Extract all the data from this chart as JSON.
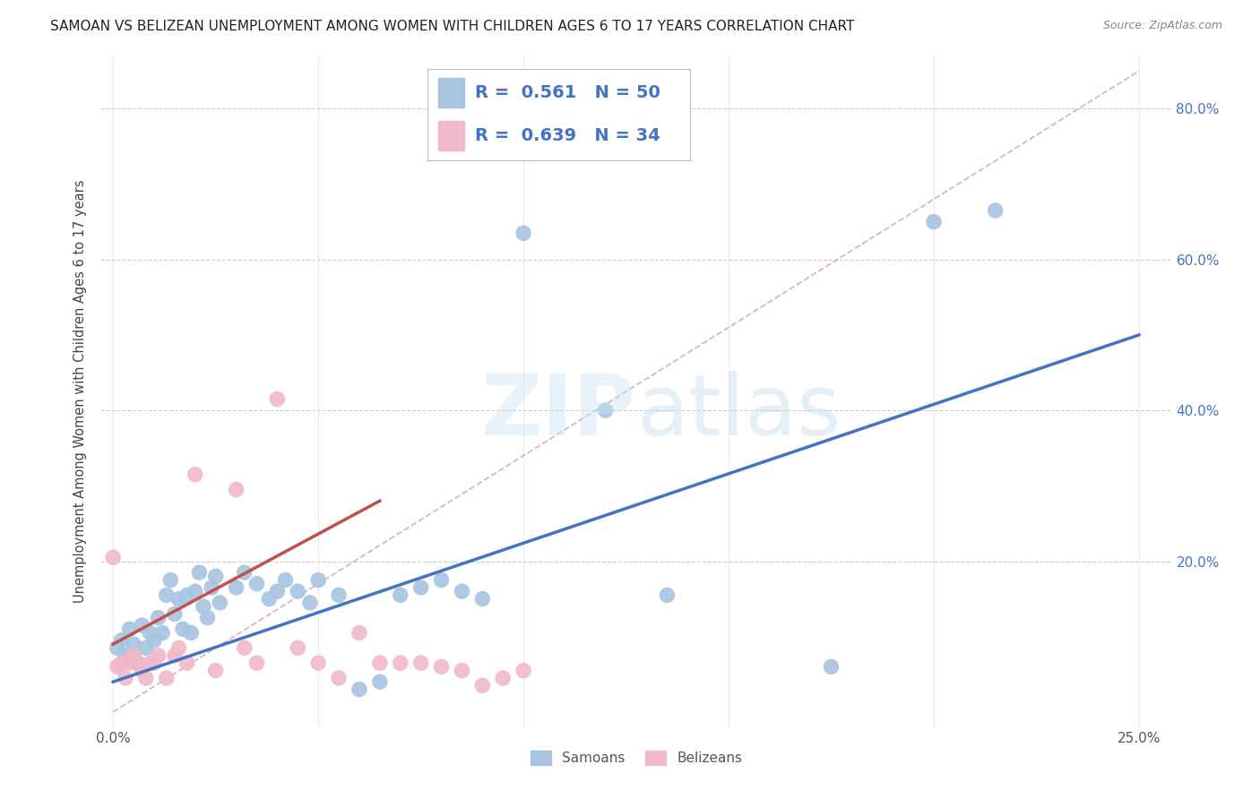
{
  "title": "SAMOAN VS BELIZEAN UNEMPLOYMENT AMONG WOMEN WITH CHILDREN AGES 6 TO 17 YEARS CORRELATION CHART",
  "source": "Source: ZipAtlas.com",
  "ylabel": "Unemployment Among Women with Children Ages 6 to 17 years",
  "xlim": [
    -0.003,
    0.258
  ],
  "ylim": [
    -0.02,
    0.87
  ],
  "xtick_positions": [
    0.0,
    0.05,
    0.1,
    0.15,
    0.2,
    0.25
  ],
  "xticklabels": [
    "0.0%",
    "",
    "",
    "",
    "",
    "25.0%"
  ],
  "ytick_positions": [
    0.0,
    0.2,
    0.4,
    0.6,
    0.8
  ],
  "yticklabels": [
    "",
    "20.0%",
    "40.0%",
    "60.0%",
    "80.0%"
  ],
  "background_color": "#ffffff",
  "samoans_color": "#a8c4e0",
  "belizeans_color": "#f0b8c8",
  "samoans_line_color": "#4472c4",
  "belizeans_line_color": "#c0504d",
  "diagonal_color": "#d4a8a8",
  "R_samoans": 0.561,
  "N_samoans": 50,
  "R_belizeans": 0.639,
  "N_belizeans": 34,
  "samoans_line": [
    [
      0.0,
      0.04
    ],
    [
      0.25,
      0.5
    ]
  ],
  "belizeans_line": [
    [
      0.0,
      0.09
    ],
    [
      0.065,
      0.28
    ]
  ],
  "diagonal_line": [
    [
      0.0,
      0.0
    ],
    [
      0.87,
      0.87
    ]
  ],
  "samoans_x": [
    0.001,
    0.002,
    0.003,
    0.004,
    0.005,
    0.005,
    0.006,
    0.007,
    0.008,
    0.009,
    0.01,
    0.011,
    0.012,
    0.013,
    0.014,
    0.015,
    0.016,
    0.017,
    0.018,
    0.019,
    0.02,
    0.021,
    0.022,
    0.023,
    0.024,
    0.025,
    0.026,
    0.03,
    0.032,
    0.035,
    0.038,
    0.04,
    0.042,
    0.045,
    0.048,
    0.05,
    0.055,
    0.06,
    0.065,
    0.07,
    0.075,
    0.08,
    0.085,
    0.09,
    0.1,
    0.12,
    0.135,
    0.175,
    0.2,
    0.215
  ],
  "samoans_y": [
    0.085,
    0.095,
    0.075,
    0.11,
    0.09,
    0.075,
    0.065,
    0.115,
    0.085,
    0.105,
    0.095,
    0.125,
    0.105,
    0.155,
    0.175,
    0.13,
    0.15,
    0.11,
    0.155,
    0.105,
    0.16,
    0.185,
    0.14,
    0.125,
    0.165,
    0.18,
    0.145,
    0.165,
    0.185,
    0.17,
    0.15,
    0.16,
    0.175,
    0.16,
    0.145,
    0.175,
    0.155,
    0.03,
    0.04,
    0.155,
    0.165,
    0.175,
    0.16,
    0.15,
    0.635,
    0.4,
    0.155,
    0.06,
    0.65,
    0.665
  ],
  "belizeans_x": [
    0.0,
    0.001,
    0.002,
    0.003,
    0.004,
    0.005,
    0.006,
    0.007,
    0.008,
    0.009,
    0.01,
    0.011,
    0.013,
    0.015,
    0.016,
    0.018,
    0.02,
    0.025,
    0.03,
    0.032,
    0.035,
    0.04,
    0.045,
    0.05,
    0.055,
    0.06,
    0.065,
    0.07,
    0.075,
    0.08,
    0.085,
    0.09,
    0.095,
    0.1
  ],
  "belizeans_y": [
    0.205,
    0.06,
    0.065,
    0.045,
    0.065,
    0.075,
    0.065,
    0.055,
    0.045,
    0.065,
    0.065,
    0.075,
    0.045,
    0.075,
    0.085,
    0.065,
    0.315,
    0.055,
    0.295,
    0.085,
    0.065,
    0.415,
    0.085,
    0.065,
    0.045,
    0.105,
    0.065,
    0.065,
    0.065,
    0.06,
    0.055,
    0.035,
    0.045,
    0.055
  ]
}
